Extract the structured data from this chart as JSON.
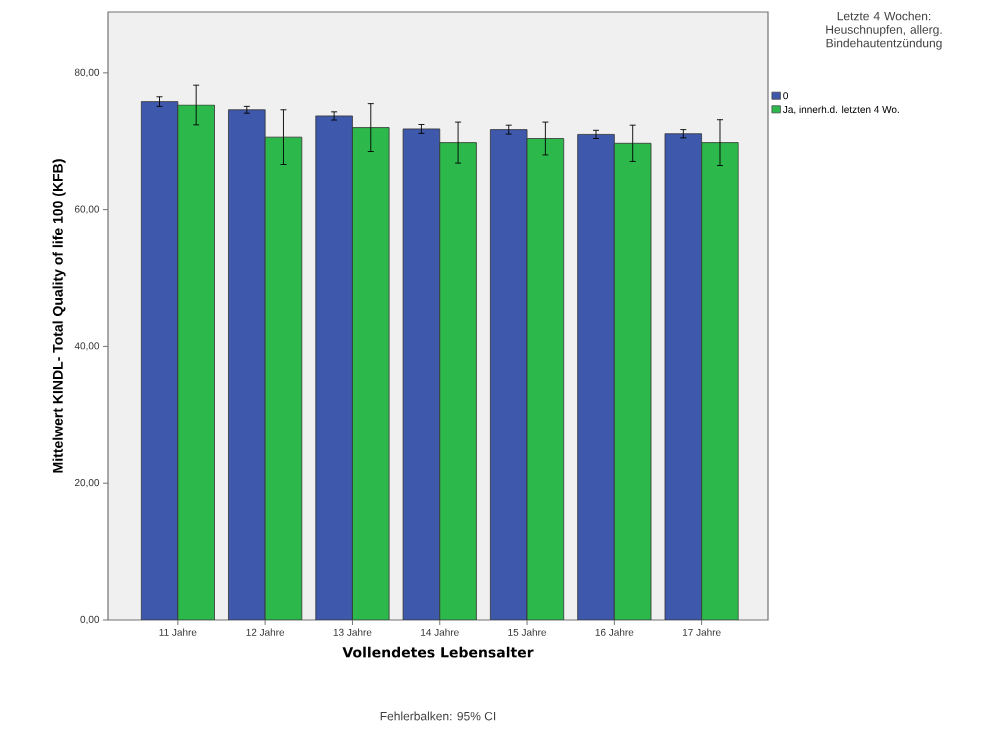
{
  "chart_data": {
    "type": "bar",
    "xlabel": "Vollendetes Lebensalter",
    "ylabel": "Mittelwert KINDL- Total Quality of life 100 (KFB)",
    "legend_title": "Letzte 4 Wochen: Heuschnupfen, allerg. Bindehautentzündung",
    "legend": "top right",
    "annotations": [
      "Fehlerbalken: 95% CI"
    ],
    "categories": [
      "11 Jahre",
      "12 Jahre",
      "13 Jahre",
      "14 Jahre",
      "15 Jahre",
      "16 Jahre",
      "17 Jahre"
    ],
    "series": [
      {
        "name": "0",
        "color": "#3e58ac",
        "values": [
          75.8,
          74.6,
          73.7,
          71.8,
          71.7,
          71.0,
          71.1
        ],
        "errors": [
          0.7,
          0.5,
          0.6,
          0.65,
          0.65,
          0.6,
          0.6
        ]
      },
      {
        "name": "Ja, innerh.d. letzten 4 Wo.",
        "color": "#2db84c",
        "values": [
          75.3,
          70.6,
          72.0,
          69.8,
          70.4,
          69.7,
          69.8
        ],
        "errors": [
          2.9,
          4.0,
          3.5,
          3.0,
          2.4,
          2.65,
          3.35
        ]
      }
    ],
    "ylim": [
      0,
      88.9
    ],
    "yticks": [
      {
        "value": 0,
        "label": "0,00"
      },
      {
        "value": 20,
        "label": "20,00"
      },
      {
        "value": 40,
        "label": "40,00"
      },
      {
        "value": 60,
        "label": "60,00"
      },
      {
        "value": 80,
        "label": "80,00"
      }
    ],
    "grid": false
  }
}
